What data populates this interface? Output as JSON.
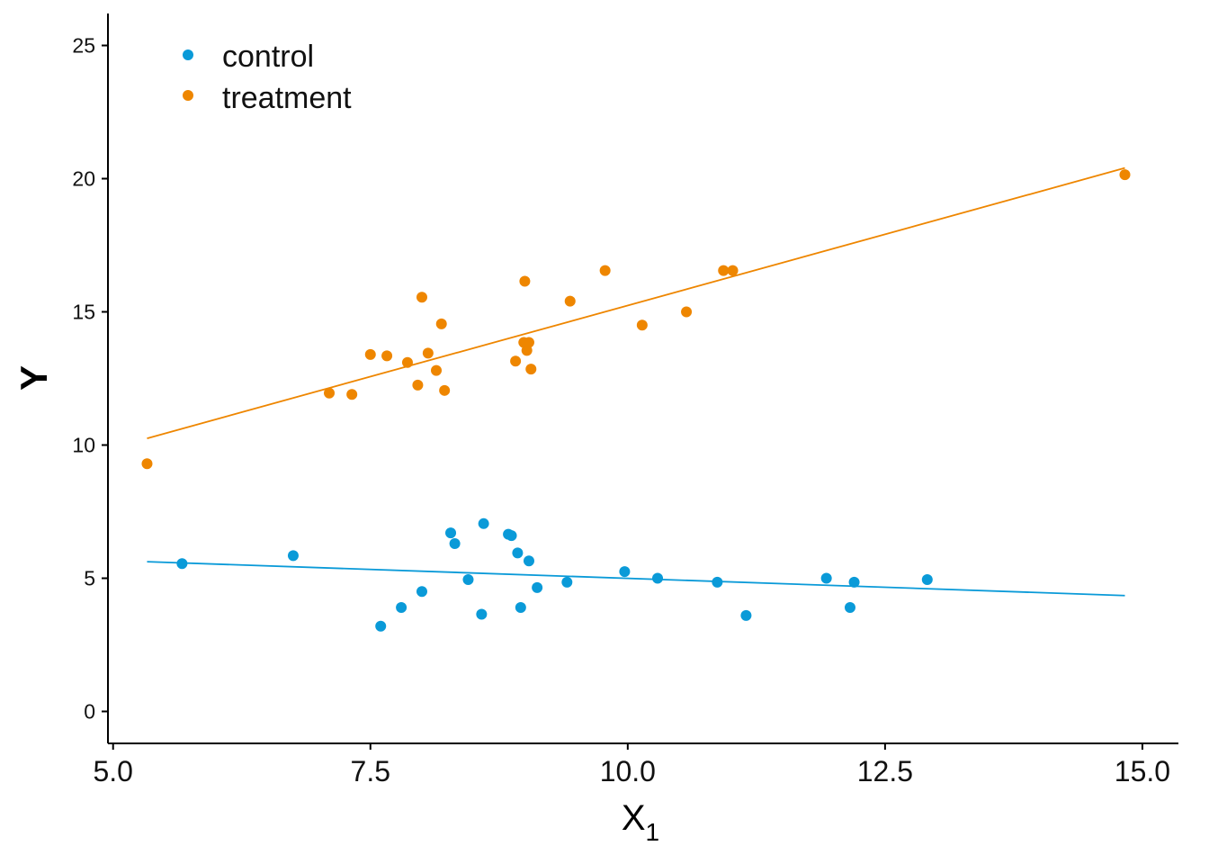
{
  "chart_data": {
    "type": "scatter",
    "xlabel": "X",
    "xlabel_subscript": "1",
    "ylabel": "Y",
    "xlim": [
      4.95,
      15.35
    ],
    "ylim": [
      -1.2,
      26.2
    ],
    "xticks": [
      5.0,
      7.5,
      10.0,
      12.5,
      15.0
    ],
    "xtick_labels": [
      "5.0",
      "7.5",
      "10.0",
      "12.5",
      "15.0"
    ],
    "yticks": [
      0,
      5,
      10,
      15,
      20,
      25
    ],
    "ytick_labels": [
      "0",
      "5",
      "10",
      "15",
      "20",
      "25"
    ],
    "grid": false,
    "legend": {
      "placement": "top-left"
    },
    "series": [
      {
        "name": "control",
        "color": "#0a9ad8",
        "points": [
          [
            5.67,
            5.55
          ],
          [
            6.75,
            5.85
          ],
          [
            7.6,
            3.2
          ],
          [
            7.8,
            3.9
          ],
          [
            8.0,
            4.5
          ],
          [
            8.28,
            6.7
          ],
          [
            8.32,
            6.3
          ],
          [
            8.45,
            4.95
          ],
          [
            8.58,
            3.65
          ],
          [
            8.6,
            7.05
          ],
          [
            8.84,
            6.65
          ],
          [
            8.87,
            6.6
          ],
          [
            8.93,
            5.95
          ],
          [
            8.96,
            3.9
          ],
          [
            9.04,
            5.65
          ],
          [
            9.12,
            4.65
          ],
          [
            9.41,
            4.85
          ],
          [
            9.97,
            5.25
          ],
          [
            10.29,
            5.0
          ],
          [
            10.87,
            4.85
          ],
          [
            11.15,
            3.6
          ],
          [
            11.93,
            5.0
          ],
          [
            12.16,
            3.9
          ],
          [
            12.2,
            4.85
          ],
          [
            12.91,
            4.95
          ]
        ],
        "fit": {
          "x": [
            5.33,
            14.83
          ],
          "y": [
            5.62,
            4.35
          ]
        }
      },
      {
        "name": "treatment",
        "color": "#ee8600",
        "points": [
          [
            5.33,
            9.3
          ],
          [
            7.1,
            11.95
          ],
          [
            7.32,
            11.9
          ],
          [
            7.5,
            13.4
          ],
          [
            7.66,
            13.35
          ],
          [
            7.86,
            13.1
          ],
          [
            7.96,
            12.25
          ],
          [
            8.0,
            15.55
          ],
          [
            8.06,
            13.45
          ],
          [
            8.14,
            12.8
          ],
          [
            8.19,
            14.55
          ],
          [
            8.22,
            12.05
          ],
          [
            8.91,
            13.15
          ],
          [
            8.99,
            13.85
          ],
          [
            9.0,
            16.15
          ],
          [
            9.02,
            13.55
          ],
          [
            9.04,
            13.85
          ],
          [
            9.06,
            12.85
          ],
          [
            9.44,
            15.4
          ],
          [
            9.78,
            16.55
          ],
          [
            10.14,
            14.5
          ],
          [
            10.57,
            15.0
          ],
          [
            10.93,
            16.55
          ],
          [
            11.02,
            16.55
          ],
          [
            14.83,
            20.15
          ]
        ],
        "fit": {
          "x": [
            5.33,
            14.83
          ],
          "y": [
            10.25,
            20.4
          ]
        }
      }
    ]
  }
}
